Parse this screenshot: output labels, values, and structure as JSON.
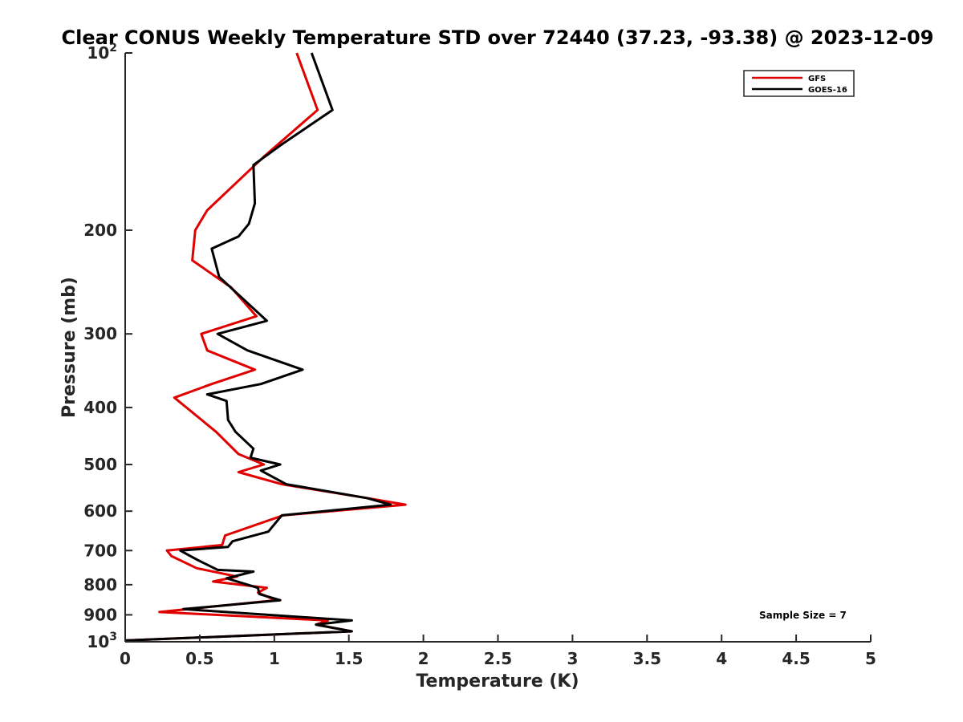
{
  "chart_data": {
    "type": "line",
    "title": "Clear CONUS Weekly Temperature STD over 72440 (37.23, -93.38) @ 2023-12-09",
    "xlabel": "Temperature (K)",
    "ylabel": "Pressure (mb)",
    "xlim": [
      0,
      5
    ],
    "ylim": [
      100,
      1000
    ],
    "y_scale": "log",
    "y_reversed": true,
    "grid": false,
    "legend_position": "top-right",
    "x_ticks": [
      {
        "value": 0,
        "label": "0"
      },
      {
        "value": 0.5,
        "label": "0.5"
      },
      {
        "value": 1,
        "label": "1"
      },
      {
        "value": 1.5,
        "label": "1.5"
      },
      {
        "value": 2,
        "label": "2"
      },
      {
        "value": 2.5,
        "label": "2.5"
      },
      {
        "value": 3,
        "label": "3"
      },
      {
        "value": 3.5,
        "label": "3.5"
      },
      {
        "value": 4,
        "label": "4"
      },
      {
        "value": 4.5,
        "label": "4.5"
      },
      {
        "value": 5,
        "label": "5"
      }
    ],
    "y_ticks": [
      {
        "value": 100,
        "base": "10",
        "exp": "2"
      },
      {
        "value": 200,
        "label": "200"
      },
      {
        "value": 300,
        "label": "300"
      },
      {
        "value": 400,
        "label": "400"
      },
      {
        "value": 500,
        "label": "500"
      },
      {
        "value": 600,
        "label": "600"
      },
      {
        "value": 700,
        "label": "700"
      },
      {
        "value": 800,
        "label": "800"
      },
      {
        "value": 900,
        "label": "900"
      },
      {
        "value": 1000,
        "base": "10",
        "exp": "3"
      }
    ],
    "series": [
      {
        "name": "GFS",
        "color": "#e00000",
        "x": [
          1.15,
          1.29,
          0.93,
          0.55,
          0.47,
          0.45,
          0.71,
          0.88,
          0.51,
          0.55,
          0.87,
          0.58,
          0.33,
          0.41,
          0.61,
          0.76,
          0.93,
          0.76,
          1.05,
          1.62,
          1.88,
          1.06,
          0.67,
          0.65,
          0.28,
          0.31,
          0.48,
          0.75,
          0.59,
          0.95,
          0.89,
          1.01,
          0.23,
          1.36,
          1.28,
          1.52,
          0.0
        ],
        "y": [
          100,
          125,
          150,
          185,
          200,
          225,
          250,
          280,
          300,
          320,
          345,
          365,
          385,
          400,
          440,
          480,
          500,
          515,
          540,
          570,
          585,
          610,
          660,
          685,
          700,
          715,
          750,
          775,
          790,
          810,
          825,
          850,
          890,
          920,
          935,
          960,
          995
        ]
      },
      {
        "name": "GOES-16",
        "color": "#000000",
        "x": [
          1.25,
          1.39,
          1.05,
          0.86,
          0.87,
          0.83,
          0.76,
          0.58,
          0.63,
          0.95,
          0.62,
          0.82,
          1.19,
          0.91,
          0.55,
          0.68,
          0.69,
          0.74,
          0.86,
          0.84,
          1.04,
          0.91,
          1.08,
          1.62,
          1.78,
          1.05,
          0.96,
          0.72,
          0.69,
          0.37,
          0.48,
          0.62,
          0.86,
          0.68,
          0.89,
          0.9,
          1.04,
          0.39,
          1.52,
          1.28,
          1.52,
          0.0
        ],
        "y": [
          100,
          125,
          143,
          155,
          180,
          195,
          205,
          215,
          240,
          285,
          300,
          320,
          345,
          365,
          380,
          390,
          420,
          440,
          470,
          487,
          500,
          512,
          540,
          570,
          585,
          610,
          650,
          675,
          690,
          700,
          725,
          755,
          760,
          780,
          810,
          830,
          850,
          880,
          920,
          935,
          960,
          995
        ]
      }
    ]
  },
  "annotations": {
    "sample_size": "Sample Size = 7"
  }
}
